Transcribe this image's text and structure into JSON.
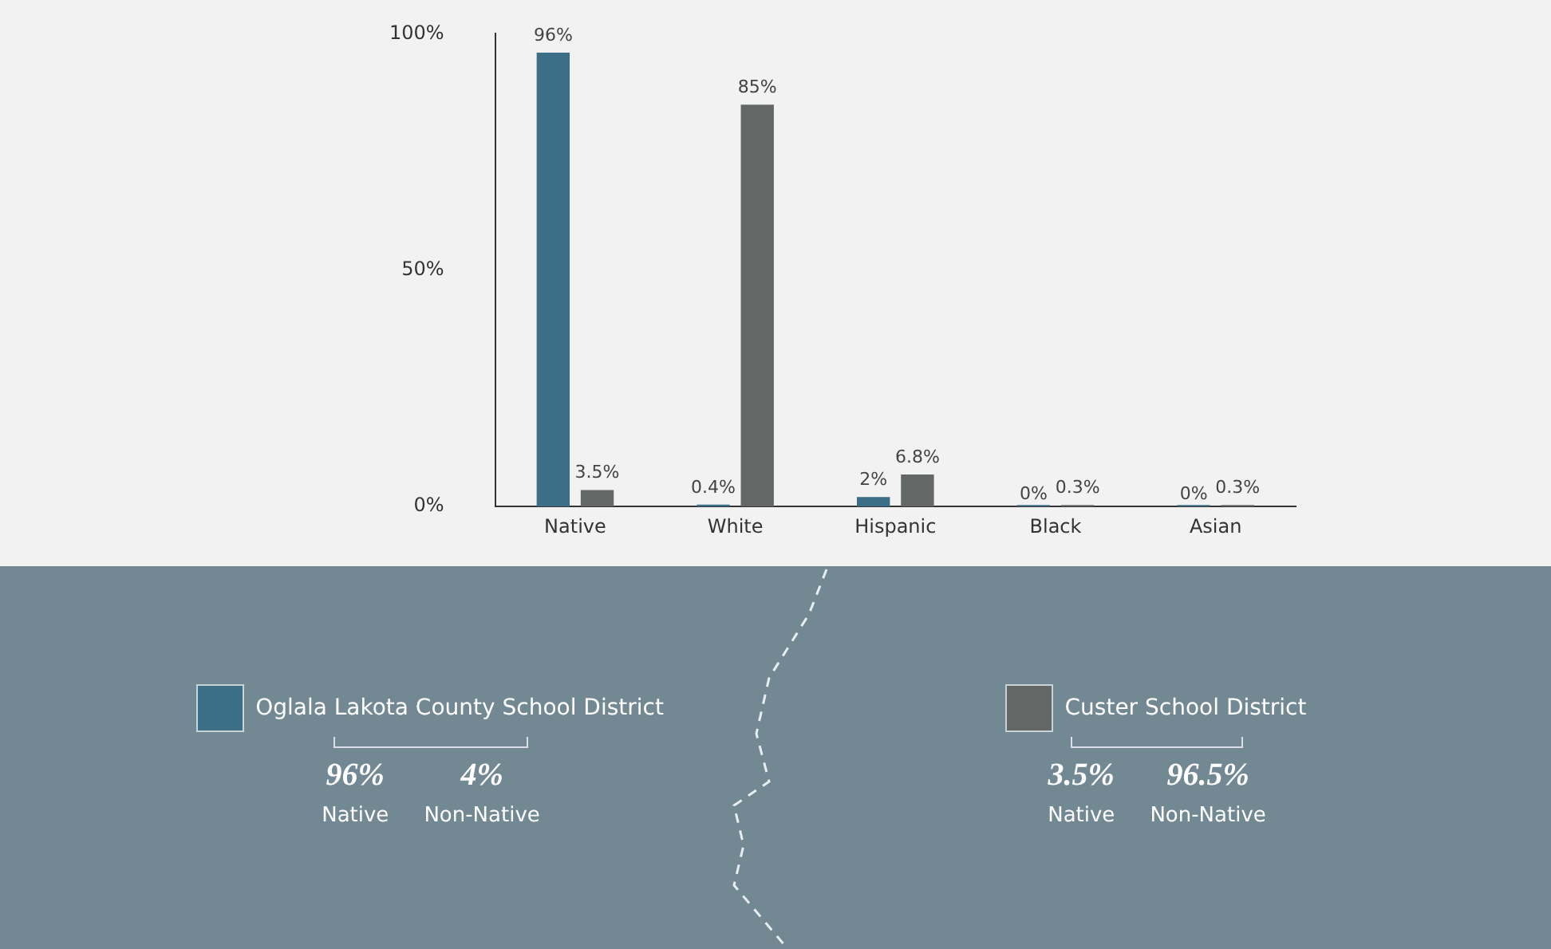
{
  "chart_data": {
    "type": "bar",
    "categories": [
      "Native",
      "White",
      "Hispanic",
      "Black",
      "Asian"
    ],
    "series": [
      {
        "name": "Oglala Lakota County School District",
        "color": "#3d6e87",
        "values": [
          96,
          0.4,
          2,
          0,
          0
        ],
        "value_labels": [
          "96%",
          "0.4%",
          "2%",
          "0%",
          "0%"
        ]
      },
      {
        "name": "Custer School District",
        "color": "#636867",
        "values": [
          3.5,
          85,
          6.8,
          0.3,
          0.3
        ],
        "value_labels": [
          "3.5%",
          "85%",
          "6.8%",
          "0.3%",
          "0.3%"
        ]
      }
    ],
    "ylim": [
      0,
      100
    ],
    "yticks": [
      {
        "value": 0,
        "label": "0%"
      },
      {
        "value": 50,
        "label": "50%"
      },
      {
        "value": 100,
        "label": "100%"
      }
    ],
    "grid": false,
    "legend": "bottom",
    "annotations": [
      "96%",
      "Native",
      "4%",
      "Non-Native",
      "3.5%",
      "Native",
      "96.5%",
      "Non-Native"
    ]
  }
}
